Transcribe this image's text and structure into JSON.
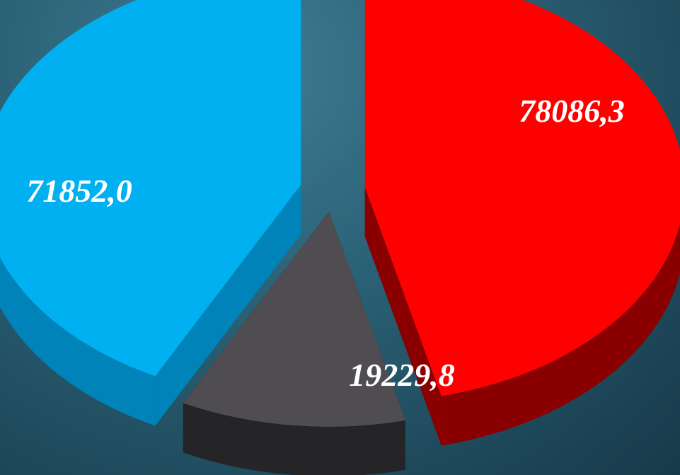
{
  "chart_data": {
    "type": "pie",
    "style": "3d-exploded",
    "slices": [
      {
        "value": 78086.3,
        "label": "78086,3",
        "color": "#ff0000",
        "side_color": "#8a0000"
      },
      {
        "value": 19229.8,
        "label": "19229,8",
        "color": "#4f4c52",
        "side_color": "#252427"
      },
      {
        "value": 71852.0,
        "label": "71852,0",
        "color": "#00b0f0",
        "side_color": "#0083b8"
      }
    ],
    "legend": "none",
    "background": "#2b6176"
  }
}
